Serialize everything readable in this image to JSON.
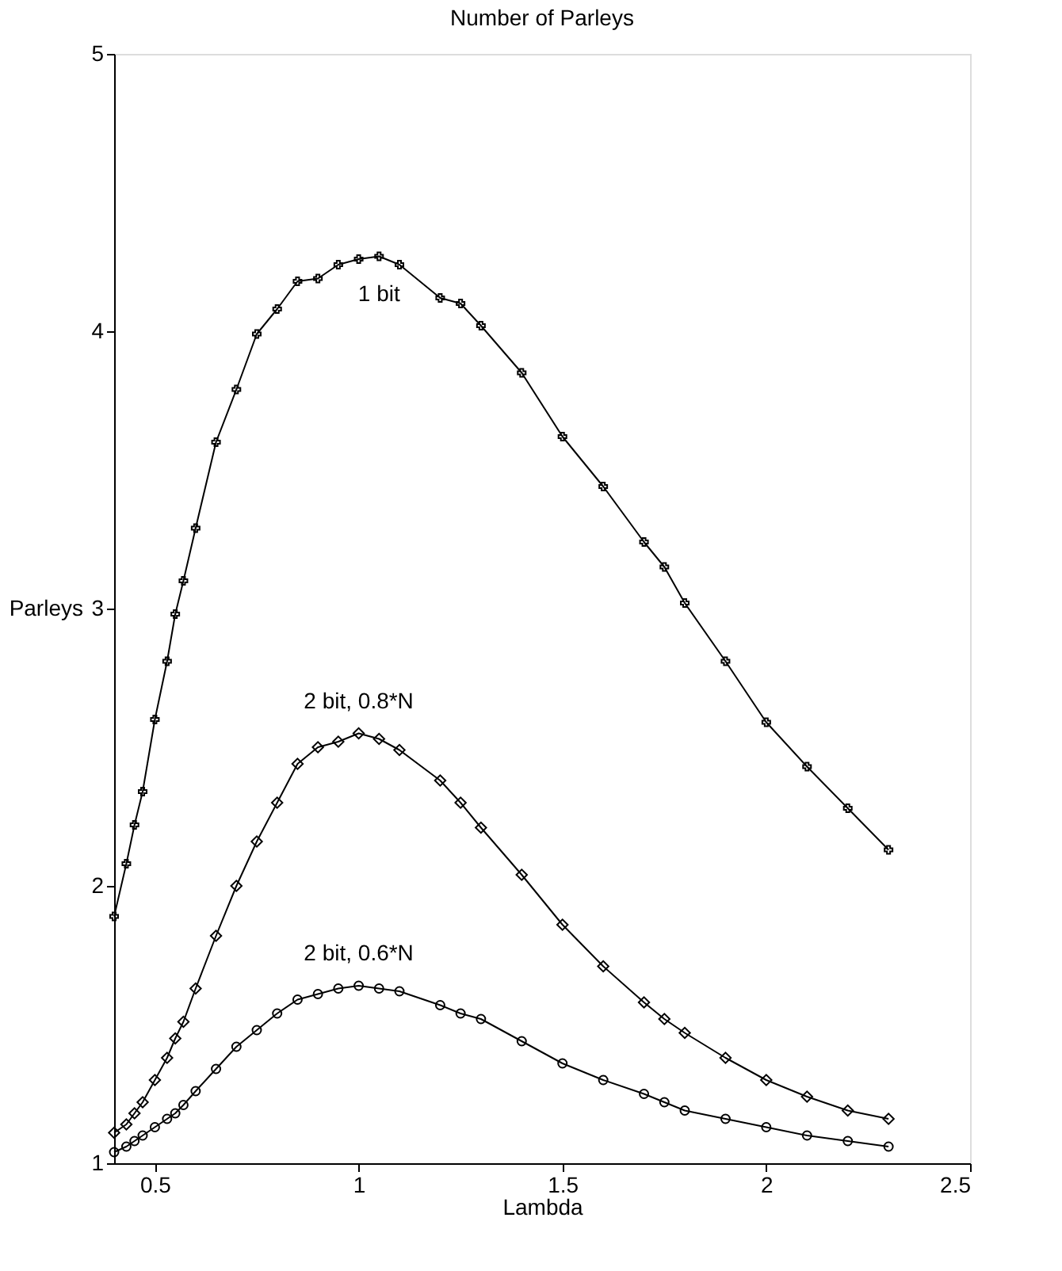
{
  "chart_data": {
    "type": "line",
    "title": "Number of Parleys",
    "xlabel": "Lambda",
    "ylabel": "Parleys",
    "x": [
      0.4,
      0.43,
      0.45,
      0.47,
      0.5,
      0.53,
      0.55,
      0.57,
      0.6,
      0.65,
      0.7,
      0.75,
      0.8,
      0.85,
      0.9,
      0.95,
      1.0,
      1.05,
      1.1,
      1.2,
      1.25,
      1.3,
      1.4,
      1.5,
      1.6,
      1.7,
      1.75,
      1.8,
      1.9,
      2.0,
      2.1,
      2.2,
      2.3
    ],
    "series": [
      {
        "name": "1 bit",
        "color": "#000000",
        "marker": "cross",
        "values": [
          1.89,
          2.08,
          2.22,
          2.34,
          2.6,
          2.81,
          2.98,
          3.1,
          3.29,
          3.6,
          3.79,
          3.99,
          4.08,
          4.18,
          4.19,
          4.24,
          4.26,
          4.27,
          4.24,
          4.12,
          4.1,
          4.02,
          3.85,
          3.62,
          3.44,
          3.24,
          3.15,
          3.02,
          2.81,
          2.59,
          2.43,
          2.28,
          2.13
        ]
      },
      {
        "name": "2 bit,   0.8*N",
        "color": "#000000",
        "marker": "diamond",
        "values": [
          1.11,
          1.14,
          1.18,
          1.22,
          1.3,
          1.38,
          1.45,
          1.51,
          1.63,
          1.82,
          2.0,
          2.16,
          2.3,
          2.44,
          2.5,
          2.52,
          2.55,
          2.53,
          2.49,
          2.38,
          2.3,
          2.21,
          2.04,
          1.86,
          1.71,
          1.58,
          1.52,
          1.47,
          1.38,
          1.3,
          1.24,
          1.19,
          1.16
        ]
      },
      {
        "name": "2 bit,  0.6*N",
        "color": "#000000",
        "marker": "circle",
        "values": [
          1.04,
          1.06,
          1.08,
          1.1,
          1.13,
          1.16,
          1.18,
          1.21,
          1.26,
          1.34,
          1.42,
          1.48,
          1.54,
          1.59,
          1.61,
          1.63,
          1.64,
          1.63,
          1.62,
          1.57,
          1.54,
          1.52,
          1.44,
          1.36,
          1.3,
          1.25,
          1.22,
          1.19,
          1.16,
          1.13,
          1.1,
          1.08,
          1.06
        ]
      }
    ],
    "xlim": [
      0.4,
      2.5
    ],
    "xticks": [
      0.5,
      1,
      1.5,
      2,
      2.5
    ],
    "ylim": [
      1,
      5
    ],
    "yticks": [
      1,
      2,
      3,
      4,
      5
    ],
    "grid": false,
    "legend": false,
    "line_style": "solid"
  }
}
